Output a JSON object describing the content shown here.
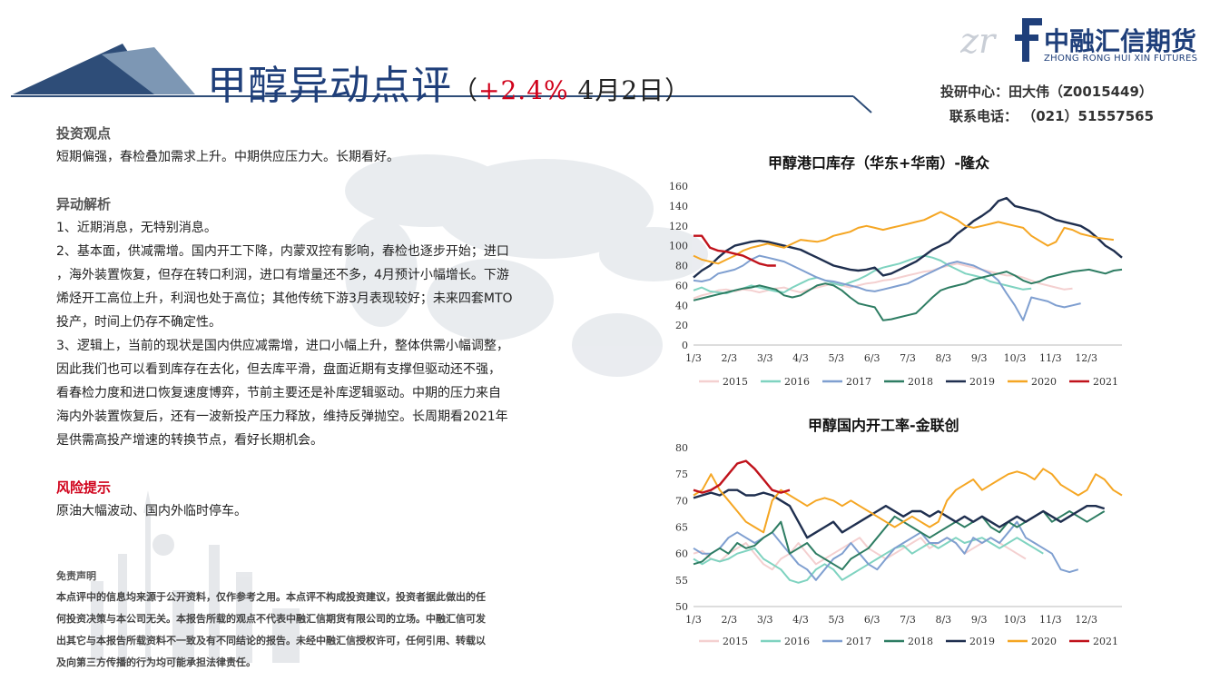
{
  "header": {
    "title": "甲醇异动点评",
    "paren_open": "（",
    "change": "+2.4%",
    "date": " 4月2日",
    "paren_close": "）"
  },
  "logo": {
    "cn": "中融汇信期货",
    "en": "ZHONG RONG HUI XIN FUTURES"
  },
  "contact": {
    "analyst": "投研中心：田大伟（Z0015449）",
    "phone": "联系电话：  （021）51557565"
  },
  "sections": {
    "view_heading": "投资观点",
    "view_text": "短期偏强，春检叠加需求上升。中期供应压力大。长期看好。",
    "analysis_heading": "异动解析",
    "analysis_lines": [
      "1、近期消息，无特别消息。",
      "2、基本面，供减需增。国内开工下降，内蒙双控有影响，春检也逐步开始；进口",
      "，海外装置恢复，但存在转口利润，进口有增量还不多，4月预计小幅增长。下游",
      "烯烃开工高位上升，利润也处于高位；其他传统下游3月表现较好；未来四套MTO",
      "投产，时间上仍存不确定性。",
      "3、逻辑上，当前的现状是国内供应减需增，进口小幅上升，整体供需小幅调整，",
      "因此我们也可以看到库存在去化，但去库平滑，盘面近期有支撑但驱动还不强，",
      "看春检力度和进口恢复速度博弈，节前主要还是补库逻辑驱动。中期的压力来自",
      "海内外装置恢复后，还有一波新投产压力释放，维持反弹抛空。长周期看2021年",
      "是供需高投产增速的转换节点，看好长期机会。"
    ],
    "risk_heading": "风险提示",
    "risk_text": "原油大幅波动、国内外临时停车。"
  },
  "disclaimer": {
    "heading": "免责声明",
    "lines": [
      "本点评中的信息均来源于公开资料，仅作参考之用。本点评不构成投资建议，投资者据此做出的任",
      "何投资决策与本公司无关。本报告所载的观点不代表中融汇信期货有限公司的立场。中融汇信可发",
      "出其它与本报告所载资料不一致及有不同结论的报告。未经中融汇信授权许可，任何引用、转载以",
      "及向第三方传播的行为均可能承担法律责任。"
    ]
  },
  "colors": {
    "2015": "#f4d0d0",
    "2016": "#7fd3c0",
    "2017": "#7f9fd0",
    "2018": "#2e7d63",
    "2019": "#1f2f4f",
    "2020": "#f5a623",
    "2021": "#c0121b"
  },
  "chart_data": [
    {
      "type": "line",
      "title": "甲醇港口库存（华东+华南）-隆众",
      "ylim": [
        0,
        160
      ],
      "yticks": [
        "0",
        "20",
        "40",
        "60",
        "80",
        "100",
        "120",
        "140",
        "160"
      ],
      "xticks": [
        "1/3",
        "2/3",
        "3/3",
        "4/3",
        "5/3",
        "6/3",
        "7/3",
        "8/3",
        "9/3",
        "10/3",
        "11/3",
        "12/3"
      ],
      "legend": "bottom",
      "series": [
        {
          "name": "2015",
          "values": [
            47,
            50,
            52,
            55,
            56,
            54,
            56,
            55,
            53,
            55,
            57,
            58,
            55,
            53,
            56,
            58,
            60,
            62,
            60,
            58,
            60,
            62,
            63,
            65,
            66,
            68,
            70,
            72,
            74,
            75,
            78,
            80,
            82,
            80,
            78,
            76,
            74,
            72,
            70,
            70,
            68,
            65,
            62,
            60,
            58,
            56,
            57
          ]
        },
        {
          "name": "2016",
          "values": [
            55,
            58,
            54,
            53,
            52,
            55,
            57,
            60,
            58,
            56,
            54,
            53,
            58,
            62,
            66,
            68,
            65,
            62,
            60,
            63,
            66,
            70,
            75,
            78,
            80,
            82,
            85,
            88,
            90,
            88,
            85,
            80,
            76,
            72,
            70,
            68,
            64,
            62,
            60,
            58,
            56,
            57
          ]
        },
        {
          "name": "2017",
          "values": [
            65,
            64,
            66,
            72,
            74,
            76,
            80,
            86,
            90,
            88,
            86,
            84,
            80,
            76,
            72,
            68,
            65,
            64,
            62,
            60,
            58,
            55,
            54,
            56,
            58,
            60,
            62,
            66,
            70,
            74,
            78,
            82,
            84,
            82,
            80,
            76,
            72,
            65,
            52,
            40,
            25,
            48,
            46,
            44,
            40,
            38,
            40,
            42
          ]
        },
        {
          "name": "2018",
          "values": [
            45,
            47,
            49,
            51,
            53,
            55,
            57,
            58,
            60,
            58,
            56,
            50,
            48,
            50,
            55,
            60,
            62,
            60,
            55,
            48,
            42,
            40,
            38,
            25,
            26,
            28,
            30,
            32,
            40,
            48,
            55,
            58,
            60,
            62,
            66,
            68,
            70,
            72,
            74,
            70,
            65,
            62,
            64,
            68,
            70,
            72,
            74,
            75,
            76,
            74,
            72,
            75,
            76
          ]
        },
        {
          "name": "2019",
          "values": [
            68,
            75,
            80,
            88,
            95,
            100,
            102,
            104,
            105,
            104,
            102,
            100,
            98,
            96,
            92,
            88,
            84,
            80,
            78,
            76,
            75,
            76,
            78,
            70,
            72,
            76,
            80,
            84,
            90,
            96,
            100,
            104,
            112,
            118,
            125,
            130,
            136,
            145,
            148,
            140,
            138,
            136,
            134,
            130,
            126,
            124,
            122,
            120,
            115,
            108,
            100,
            95,
            88
          ]
        },
        {
          "name": "2020",
          "values": [
            90,
            86,
            84,
            82,
            86,
            90,
            95,
            98,
            100,
            102,
            100,
            98,
            102,
            106,
            105,
            104,
            106,
            110,
            112,
            114,
            118,
            120,
            118,
            116,
            118,
            120,
            122,
            124,
            126,
            130,
            134,
            130,
            126,
            120,
            118,
            120,
            122,
            124,
            122,
            120,
            118,
            110,
            105,
            100,
            104,
            118,
            116,
            112,
            110,
            108,
            107,
            106
          ]
        },
        {
          "name": "2021",
          "values": [
            110,
            110,
            98,
            95,
            94,
            92,
            90,
            86,
            82,
            80,
            80
          ]
        }
      ]
    },
    {
      "type": "line",
      "title": "甲醇国内开工率-金联创",
      "ylim": [
        50,
        80
      ],
      "yticks": [
        "50",
        "55",
        "60",
        "65",
        "70",
        "75",
        "80"
      ],
      "xticks": [
        "1/3",
        "2/3",
        "3/3",
        "4/3",
        "5/3",
        "6/3",
        "7/3",
        "8/3",
        "9/3",
        "10/3",
        "11/3",
        "12/3"
      ],
      "legend": "bottom",
      "series": [
        {
          "name": "2015",
          "values": [
            60,
            60.5,
            59,
            58.5,
            60,
            61,
            62,
            60,
            58,
            57,
            59,
            60,
            62,
            60,
            58,
            59,
            60,
            61,
            62,
            63,
            61,
            60,
            59,
            60,
            61,
            62,
            63,
            61,
            62,
            63,
            62,
            60,
            61,
            62,
            63,
            62,
            61,
            60,
            59
          ]
        },
        {
          "name": "2016",
          "values": [
            59,
            58,
            59,
            58.5,
            59,
            60,
            60.5,
            61,
            59,
            58,
            57,
            55,
            54.5,
            55,
            57,
            58,
            57,
            55,
            56,
            57,
            58,
            59,
            60,
            61,
            61.5,
            60,
            61,
            62,
            61,
            62,
            63,
            62,
            62.5,
            63,
            62,
            61,
            62,
            63,
            62,
            61,
            60
          ]
        },
        {
          "name": "2017",
          "values": [
            61,
            60,
            60,
            61,
            63,
            64,
            63,
            62,
            63,
            64,
            62,
            60,
            58,
            57,
            55,
            57,
            59,
            60,
            62,
            60,
            58,
            57,
            59,
            61,
            62,
            63,
            64,
            62,
            62,
            63,
            62,
            60,
            63,
            62,
            63,
            62,
            64,
            66,
            63,
            62,
            61,
            60,
            57,
            56.5,
            57
          ]
        },
        {
          "name": "2018",
          "values": [
            58,
            58.5,
            60,
            61,
            60,
            62,
            61,
            61.5,
            63,
            64,
            66,
            60,
            61,
            62,
            60,
            59,
            58,
            57,
            59,
            60,
            61,
            63,
            65,
            67,
            66,
            65,
            64,
            63,
            64,
            65,
            66,
            65,
            66,
            67,
            65,
            64,
            66,
            65,
            66,
            67,
            68,
            66,
            67,
            68,
            67,
            66,
            67,
            68
          ]
        },
        {
          "name": "2019",
          "values": [
            70.5,
            71,
            71.5,
            71,
            72,
            72,
            71,
            71,
            71.5,
            71,
            70,
            69,
            66,
            63,
            64,
            65,
            66,
            64,
            65,
            66,
            67,
            68,
            69,
            68,
            67,
            68,
            68,
            67,
            68,
            67,
            66,
            67,
            66,
            67,
            66,
            65,
            66,
            67,
            66,
            67,
            68,
            67,
            66,
            67,
            68,
            69,
            69,
            68.5
          ]
        },
        {
          "name": "2020",
          "values": [
            71,
            72,
            75,
            72,
            70,
            68,
            66,
            65,
            64,
            70,
            72,
            71,
            70,
            69,
            70,
            70.5,
            70,
            69,
            70,
            69,
            68,
            67,
            66,
            65,
            66,
            67,
            66,
            65,
            66,
            70,
            72,
            73,
            74,
            72,
            73,
            74,
            75,
            75.5,
            75,
            74,
            76,
            75,
            73,
            72,
            71,
            72,
            75,
            74,
            72,
            71
          ]
        },
        {
          "name": "2021",
          "values": [
            72,
            71.5,
            72,
            73,
            75,
            77,
            77.5,
            76,
            74,
            72,
            71.5,
            72
          ]
        }
      ]
    }
  ]
}
